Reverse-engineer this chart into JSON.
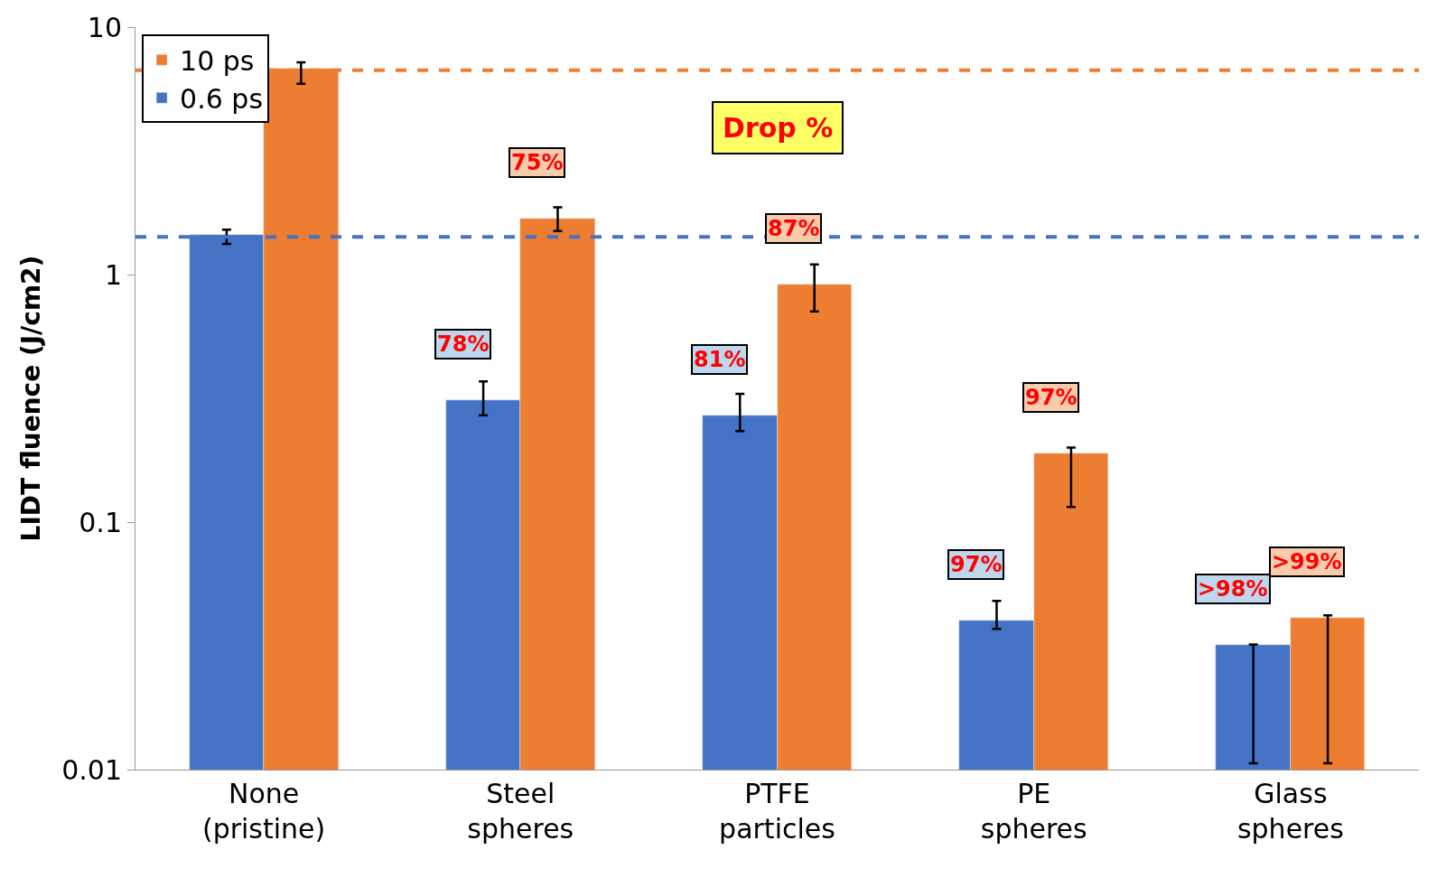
{
  "chart_data": {
    "type": "bar",
    "ylabel": "LIDT fluence (J/cm2)",
    "categories": [
      "None\n(pristine)",
      "Steel\nspheres",
      "PTFE\nparticles",
      "PE\nspheres",
      "Glass\nspheres"
    ],
    "series": [
      {
        "name": "0.6 ps",
        "color": "#4472c4",
        "values": [
          1.45,
          0.31,
          0.27,
          0.04,
          0.032
        ],
        "errors": [
          [
            1.33,
            1.52
          ],
          [
            0.27,
            0.37
          ],
          [
            0.233,
            0.33
          ],
          [
            0.037,
            0.048
          ],
          [
            0.0106,
            0.032
          ]
        ]
      },
      {
        "name": "10 ps",
        "color": "#ed7d31",
        "values": [
          6.8,
          1.68,
          0.91,
          0.19,
          0.041
        ],
        "errors": [
          [
            5.9,
            7.2
          ],
          [
            1.5,
            1.87
          ],
          [
            0.71,
            1.1
          ],
          [
            0.115,
            0.2
          ],
          [
            0.0106,
            0.042
          ]
        ]
      }
    ],
    "log": true,
    "ylim": [
      0.01,
      10
    ],
    "yticks": [
      0.01,
      0.1,
      1,
      10
    ],
    "legend": "top left",
    "ref_lines": [
      {
        "axis": "y",
        "value": 6.7,
        "color": "#ed7d31",
        "line_style": "dashed"
      },
      {
        "axis": "y",
        "value": 1.42,
        "color": "#4472c4",
        "line_style": "dashed"
      }
    ],
    "annotations": [
      "Drop %",
      "78%",
      "75%",
      "81%",
      "87%",
      "97%",
      "97%",
      ">98%",
      ">99%"
    ]
  }
}
